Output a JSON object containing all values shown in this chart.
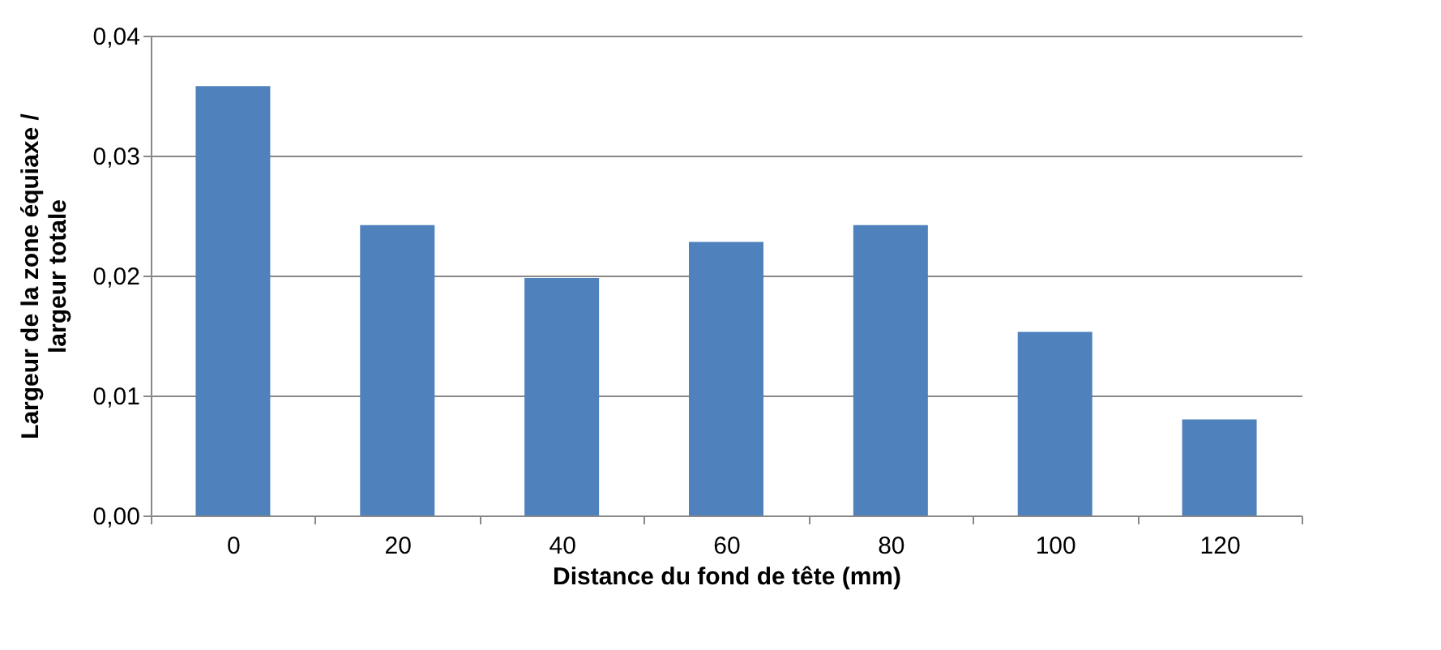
{
  "chart_data": {
    "type": "bar",
    "xlabel": "Distance du fond de tête (mm)",
    "ylabel": "Largeur de la zone équiaxe / largeur totale",
    "categories": [
      "0",
      "20",
      "40",
      "60",
      "80",
      "100",
      "120"
    ],
    "values": [
      0.0358,
      0.0242,
      0.0198,
      0.0228,
      0.0242,
      0.0153,
      0.008
    ],
    "color": "#4f81bd",
    "ylim": [
      0,
      0.04
    ],
    "yticks": [
      {
        "value": 0,
        "label": "0,00"
      },
      {
        "value": 0.01,
        "label": "0,01"
      },
      {
        "value": 0.02,
        "label": "0,02"
      },
      {
        "value": 0.03,
        "label": "0,03"
      },
      {
        "value": 0.04,
        "label": "0,04"
      }
    ],
    "grid": "y"
  }
}
